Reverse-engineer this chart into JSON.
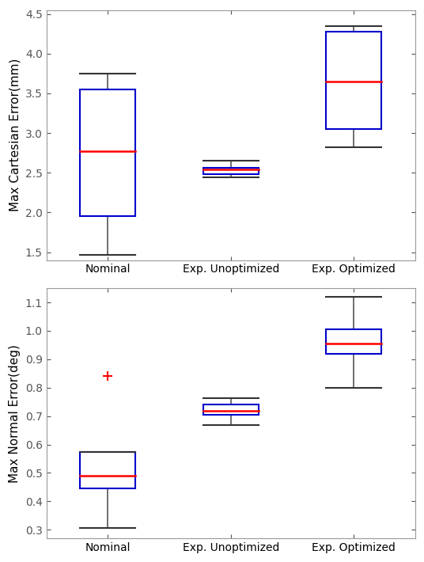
{
  "plot1": {
    "ylabel": "Max Cartesian Error(mm)",
    "ylim": [
      1.4,
      4.55
    ],
    "yticks": [
      1.5,
      2.0,
      2.5,
      3.0,
      3.5,
      4.0,
      4.5
    ],
    "categories": [
      "Nominal",
      "Exp. Unoptimized",
      "Exp. Optimized"
    ],
    "boxes": [
      {
        "q1": 1.95,
        "median": 2.77,
        "q3": 3.55,
        "whisker_low": 1.47,
        "whisker_high": 3.75,
        "fliers": []
      },
      {
        "q1": 2.48,
        "median": 2.54,
        "q3": 2.565,
        "whisker_low": 2.44,
        "whisker_high": 2.65,
        "fliers": []
      },
      {
        "q1": 3.05,
        "median": 3.65,
        "q3": 4.28,
        "whisker_low": 2.82,
        "whisker_high": 4.35,
        "fliers": []
      }
    ],
    "box_color": "#0000cc",
    "median_color": "#FF0000",
    "whisker_color": "#555555",
    "cap_color": "#333333",
    "flier_color": "#FF0000"
  },
  "plot2": {
    "ylabel": "Max Normal Error(deg)",
    "ylim": [
      0.27,
      1.15
    ],
    "yticks": [
      0.3,
      0.4,
      0.5,
      0.6,
      0.7,
      0.8,
      0.9,
      1.0,
      1.1
    ],
    "categories": [
      "Nominal",
      "Exp. Unoptimized",
      "Exp. Optimized"
    ],
    "boxes": [
      {
        "q1": 0.445,
        "median": 0.49,
        "q3": 0.575,
        "whisker_low": 0.305,
        "whisker_high": 0.575,
        "fliers": [
          0.84
        ]
      },
      {
        "q1": 0.705,
        "median": 0.718,
        "q3": 0.74,
        "whisker_low": 0.668,
        "whisker_high": 0.762,
        "fliers": []
      },
      {
        "q1": 0.92,
        "median": 0.955,
        "q3": 1.005,
        "whisker_low": 0.8,
        "whisker_high": 1.12,
        "fliers": []
      }
    ],
    "box_color": "#0000cc",
    "median_color": "#FF0000",
    "whisker_color": "#555555",
    "cap_color": "#333333",
    "flier_color": "#FF0000"
  },
  "background_color": "#FFFFFF",
  "spine_color": "#999999",
  "tick_color": "#555555",
  "label_color": "#000000",
  "figsize": [
    5.36,
    7.1
  ],
  "dpi": 100
}
